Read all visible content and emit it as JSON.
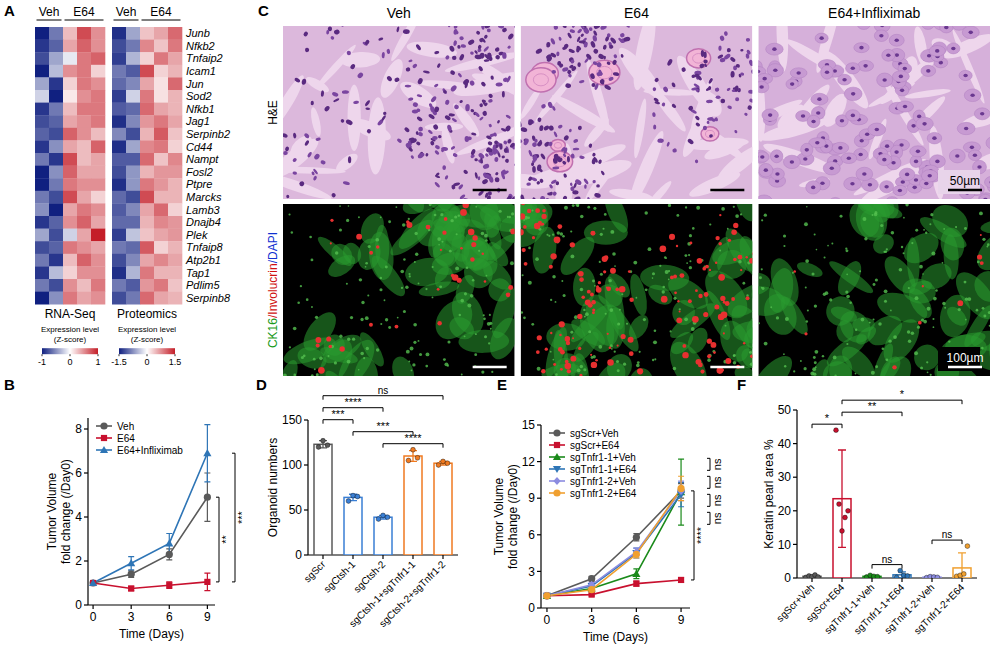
{
  "chart_data": [
    {
      "type": "heatmap",
      "panel_label": "A",
      "categories": [
        "Junb",
        "Nfkb2",
        "Tnfaip2",
        "Icam1",
        "Jun",
        "Sod2",
        "Nfkb1",
        "Jag1",
        "Serpinb2",
        "Cd44",
        "Nampt",
        "Fosl2",
        "Ptpre",
        "Marcks",
        "Lamb3",
        "Dnajb4",
        "Plek",
        "Tnfaip8",
        "Atp2b1",
        "Tap1",
        "Pdlim5",
        "Serpinb8"
      ],
      "column_groups": [
        {
          "label": "Veh",
          "count": 2
        },
        {
          "label": "E64",
          "count": 3
        }
      ],
      "colorbar_title": [
        "Expression level",
        "(Z-score)"
      ],
      "series": [
        {
          "name": "RNA-Seq",
          "colorbar_range": [
            -1,
            1
          ],
          "colorbar_ticks": [
            -1,
            0,
            1
          ],
          "values": [
            [
              -1,
              -0.6,
              0.3,
              0.8,
              0.5
            ],
            [
              -0.9,
              -0.7,
              0.4,
              0.7,
              0.5
            ],
            [
              -0.8,
              -0.4,
              -0.1,
              0.6,
              0.7
            ],
            [
              -1,
              -0.3,
              0.5,
              0.6,
              0.2
            ],
            [
              -0.4,
              -0.9,
              0.2,
              0.6,
              0.5
            ],
            [
              -0.2,
              -1,
              0.1,
              0.5,
              0.6
            ],
            [
              -0.9,
              -0.6,
              0.3,
              0.6,
              0.6
            ],
            [
              -0.8,
              -0.7,
              0.4,
              0.5,
              0.6
            ],
            [
              -0.7,
              -0.8,
              0.7,
              0.5,
              0.3
            ],
            [
              -0.9,
              -0.5,
              0.4,
              0.3,
              0.7
            ],
            [
              -0.6,
              -0.9,
              0.8,
              0.3,
              0.4
            ],
            [
              -1,
              -0.5,
              0.7,
              0.4,
              0.4
            ],
            [
              -1,
              -0.6,
              0.6,
              0.5,
              0.5
            ],
            [
              -0.6,
              -0.8,
              0.8,
              0.4,
              0.2
            ],
            [
              -0.5,
              -1,
              0.4,
              0.6,
              0.5
            ],
            [
              -0.9,
              -0.7,
              0.5,
              0.7,
              0.4
            ],
            [
              -0.4,
              -0.8,
              -0.2,
              0.4,
              1
            ],
            [
              -0.8,
              -0.7,
              0.6,
              0.5,
              0.4
            ],
            [
              -0.6,
              -0.9,
              0.3,
              0.7,
              0.5
            ],
            [
              -0.9,
              -0.3,
              0.2,
              0.5,
              0.5
            ],
            [
              -0.6,
              -0.8,
              0.5,
              0.3,
              0.6
            ],
            [
              -1,
              -0.5,
              0.6,
              0.4,
              0.5
            ]
          ]
        },
        {
          "name": "Proteomics",
          "colorbar_range": [
            -1.5,
            1.5
          ],
          "colorbar_ticks": [
            -1.5,
            0,
            1.5
          ],
          "values": [
            [
              -1.4,
              -0.6,
              0.4,
              0.6,
              1.0
            ],
            [
              -1.2,
              -0.9,
              0.8,
              0.4,
              0.9
            ],
            [
              -1.3,
              -0.5,
              0.3,
              0.9,
              0.6
            ],
            [
              -0.9,
              -1.1,
              1.2,
              0.3,
              0.5
            ],
            [
              -1.0,
              -0.8,
              0.6,
              0.2,
              1.0
            ],
            [
              -1.3,
              -0.3,
              0.9,
              0.2,
              0.5
            ],
            [
              -1.1,
              -1.0,
              1.0,
              0.6,
              0.5
            ],
            [
              -1.4,
              -0.8,
              0.7,
              0.9,
              0.6
            ],
            [
              -0.8,
              -1.2,
              0.5,
              1.1,
              0.4
            ],
            [
              -1.4,
              -0.6,
              0.8,
              0.9,
              0.3
            ],
            [
              -1.1,
              -1.1,
              1.0,
              0.4,
              0.8
            ],
            [
              -1.2,
              -0.7,
              0.5,
              0.7,
              0.7
            ],
            [
              -1.4,
              -0.7,
              0.9,
              0.7,
              0.5
            ],
            [
              -1.0,
              -1.2,
              1.2,
              0.5,
              0.5
            ],
            [
              -1.1,
              -0.8,
              0.6,
              1.0,
              0.3
            ],
            [
              -1.0,
              -1.0,
              0.5,
              0.8,
              0.7
            ],
            [
              -1.3,
              -0.4,
              0.4,
              0.6,
              0.7
            ],
            [
              -0.9,
              -1.0,
              1.1,
              0.3,
              0.5
            ],
            [
              -1.2,
              -0.8,
              0.6,
              0.8,
              0.6
            ],
            [
              -1.4,
              -0.5,
              0.9,
              0.5,
              0.5
            ],
            [
              -0.9,
              -1.1,
              0.7,
              0.9,
              0.4
            ],
            [
              -1.2,
              -0.9,
              1.0,
              0.6,
              0.5
            ]
          ]
        }
      ]
    },
    {
      "type": "line",
      "panel_label": "B",
      "x": [
        0,
        3,
        6,
        9
      ],
      "xlim": [
        -0.4,
        9.6
      ],
      "xticks": [
        0,
        3,
        6,
        9
      ],
      "ylim": [
        0,
        8.5
      ],
      "yticks": [
        0,
        2,
        4,
        6,
        8
      ],
      "xlabel": "Time (Days)",
      "ylabel": [
        "Tumor Volume",
        "fold change (/Day0)"
      ],
      "legend": "top-left",
      "series": [
        {
          "name": "Veh",
          "color": "#5a5a5a",
          "marker": "circle",
          "values": [
            1,
            1.4,
            2.3,
            4.9
          ],
          "errors": [
            0,
            0.15,
            0.25,
            1.1
          ]
        },
        {
          "name": "E64",
          "color": "#c8102e",
          "marker": "square",
          "values": [
            1,
            0.75,
            0.9,
            1.05
          ],
          "errors": [
            0,
            0.1,
            0.15,
            0.4
          ]
        },
        {
          "name": "E64+Infliximab",
          "color": "#2e75b6",
          "marker": "triangle",
          "values": [
            1,
            1.9,
            2.8,
            6.9
          ],
          "errors": [
            0,
            0.3,
            0.45,
            1.3
          ]
        }
      ],
      "annotations": [
        {
          "text": "**",
          "between": [
            "Veh",
            "E64"
          ]
        },
        {
          "text": "***",
          "between": [
            "E64+Infliximab",
            "E64"
          ]
        }
      ]
    },
    {
      "type": "bar",
      "panel_label": "D",
      "categories": [
        "sgScr",
        "sgCtsh-1",
        "sgCtsh-2",
        "sgCtsh-1+sgTnfr1-1",
        "sgCtsh-2+sgTnfr1-2"
      ],
      "values": [
        123,
        64,
        42,
        110,
        102
      ],
      "errors": [
        4,
        3.5,
        2,
        6,
        2
      ],
      "points": [
        [
          120,
          127,
          122
        ],
        [
          60,
          66,
          65
        ],
        [
          40,
          44,
          42
        ],
        [
          105,
          117,
          108
        ],
        [
          100,
          104,
          102
        ]
      ],
      "colors": [
        "#5a5a5a",
        "#3a7fd5",
        "#3a7fd5",
        "#f07a20",
        "#f07a20"
      ],
      "ylim": [
        0,
        150
      ],
      "yticks": [
        0,
        50,
        100,
        150
      ],
      "ylabel": "Organoid numbers",
      "annotations": [
        {
          "text": "****",
          "between": [
            "sgCtsh-2",
            "sgCtsh-2+sgTnfr1-2"
          ]
        },
        {
          "text": "***",
          "between": [
            "sgCtsh-1",
            "sgCtsh-1+sgTnfr1-1"
          ]
        },
        {
          "text": "***",
          "between": [
            "sgScr",
            "sgCtsh-1"
          ]
        },
        {
          "text": "****",
          "between": [
            "sgScr",
            "sgCtsh-2"
          ]
        },
        {
          "text": "ns",
          "between": [
            "sgScr",
            "sgCtsh-2+sgTnfr1-2"
          ]
        }
      ]
    },
    {
      "type": "line",
      "panel_label": "E",
      "x": [
        0,
        3,
        6,
        9
      ],
      "xlim": [
        -0.4,
        9.6
      ],
      "xticks": [
        0,
        3,
        6,
        9
      ],
      "ylim": [
        0,
        15
      ],
      "yticks": [
        0,
        3,
        6,
        9,
        12,
        15
      ],
      "xlabel": "Time (Days)",
      "ylabel": [
        "Tumor Volume",
        "fold change (/Day0)"
      ],
      "legend": "top-left",
      "series": [
        {
          "name": "sgScr+Veh",
          "color": "#5a5a5a",
          "marker": "circle",
          "values": [
            1,
            2.4,
            5.8,
            9.6
          ],
          "errors": [
            0,
            0.2,
            0.3,
            0.6
          ]
        },
        {
          "name": "sgScr+E64",
          "color": "#c8102e",
          "marker": "square",
          "values": [
            1,
            1.1,
            2.0,
            2.3
          ],
          "errors": [
            0,
            0.1,
            0.2,
            0.2
          ]
        },
        {
          "name": "sgTnfr1-1+Veh",
          "color": "#1a8a1a",
          "marker": "triangle",
          "values": [
            1,
            1.6,
            2.8,
            9.5
          ],
          "errors": [
            0,
            0.2,
            0.4,
            2.7
          ]
        },
        {
          "name": "sgTnfr1-1+E64",
          "color": "#2e75b6",
          "marker": "triangle-down",
          "values": [
            1,
            1.8,
            4.5,
            9.3
          ],
          "errors": [
            0,
            0.2,
            0.4,
            1.0
          ]
        },
        {
          "name": "sgTnfr1-2+Veh",
          "color": "#8c8ce0",
          "marker": "diamond",
          "values": [
            1,
            1.9,
            4.6,
            9.6
          ],
          "errors": [
            0,
            0.2,
            0.3,
            0.8
          ]
        },
        {
          "name": "sgTnfr1-2+E64",
          "color": "#f0a030",
          "marker": "circle",
          "values": [
            1,
            1.5,
            4.4,
            9.8
          ],
          "errors": [
            0,
            0.2,
            0.3,
            1.0
          ]
        }
      ],
      "annotations": [
        {
          "text": "****",
          "between": [
            "sgScr+Veh",
            "sgScr+E64"
          ]
        },
        {
          "text": "ns",
          "between": [
            "sgScr+Veh",
            "sgTnfr1-1+Veh"
          ]
        },
        {
          "text": "ns",
          "between": [
            "sgTnfr1-1+Veh",
            "sgTnfr1-1+E64"
          ]
        },
        {
          "text": "ns",
          "between": [
            "sgScr+Veh",
            "sgTnfr1-2+Veh"
          ]
        },
        {
          "text": "ns",
          "between": [
            "sgTnfr1-2+Veh",
            "sgTnfr1-2+E64"
          ]
        }
      ]
    },
    {
      "type": "bar",
      "panel_label": "F",
      "categories": [
        "sgScr+Veh",
        "sgScr+E64",
        "sgTnfr1-1+Veh",
        "sgTnfr1-1+E64",
        "sgTnfr1-2+Veh",
        "sgTnfr1-2+E64"
      ],
      "values": [
        0.5,
        23.6,
        0.5,
        0.95,
        0.25,
        3.0
      ],
      "errors": [
        0.3,
        14.5,
        0.2,
        0.9,
        0.13,
        4.5
      ],
      "points": [
        [
          0.2,
          0.6,
          0.4,
          0.9,
          0.3
        ],
        [
          44,
          22,
          14,
          18,
          20
        ],
        [
          0.3,
          0.8,
          0.5,
          0.4
        ],
        [
          0.2,
          2.2,
          0.8,
          0.6
        ],
        [
          0.1,
          0.4,
          0.3,
          0.2
        ],
        [
          0.5,
          0.8,
          1.2,
          9.5
        ]
      ],
      "colors": [
        "#5a5a5a",
        "#c8102e",
        "#1a8a1a",
        "#2e75b6",
        "#8c8ce0",
        "#f0a030"
      ],
      "ylim": [
        0,
        50
      ],
      "yticks": [
        0,
        10,
        20,
        30,
        40,
        50
      ],
      "ylabel": "Keratin pearl area %",
      "annotations": [
        {
          "text": "*",
          "between": [
            "sgScr+Veh",
            "sgScr+E64"
          ]
        },
        {
          "text": "**",
          "between": [
            "sgScr+E64",
            "sgTnfr1-1+E64"
          ]
        },
        {
          "text": "*",
          "between": [
            "sgScr+E64",
            "sgTnfr1-2+E64"
          ]
        },
        {
          "text": "ns",
          "between": [
            "sgTnfr1-1+Veh",
            "sgTnfr1-1+E64"
          ]
        },
        {
          "text": "ns",
          "between": [
            "sgTnfr1-2+Veh",
            "sgTnfr1-2+E64"
          ]
        }
      ]
    }
  ],
  "images": {
    "panel_label": "C",
    "columns": [
      "Veh",
      "E64",
      "E64+Infliximab"
    ],
    "rows": [
      [
        "H&E"
      ],
      [
        "CK16",
        "/Involucrin",
        "/DAPI"
      ]
    ],
    "scale_bars": [
      "50µm",
      "100µm"
    ]
  }
}
